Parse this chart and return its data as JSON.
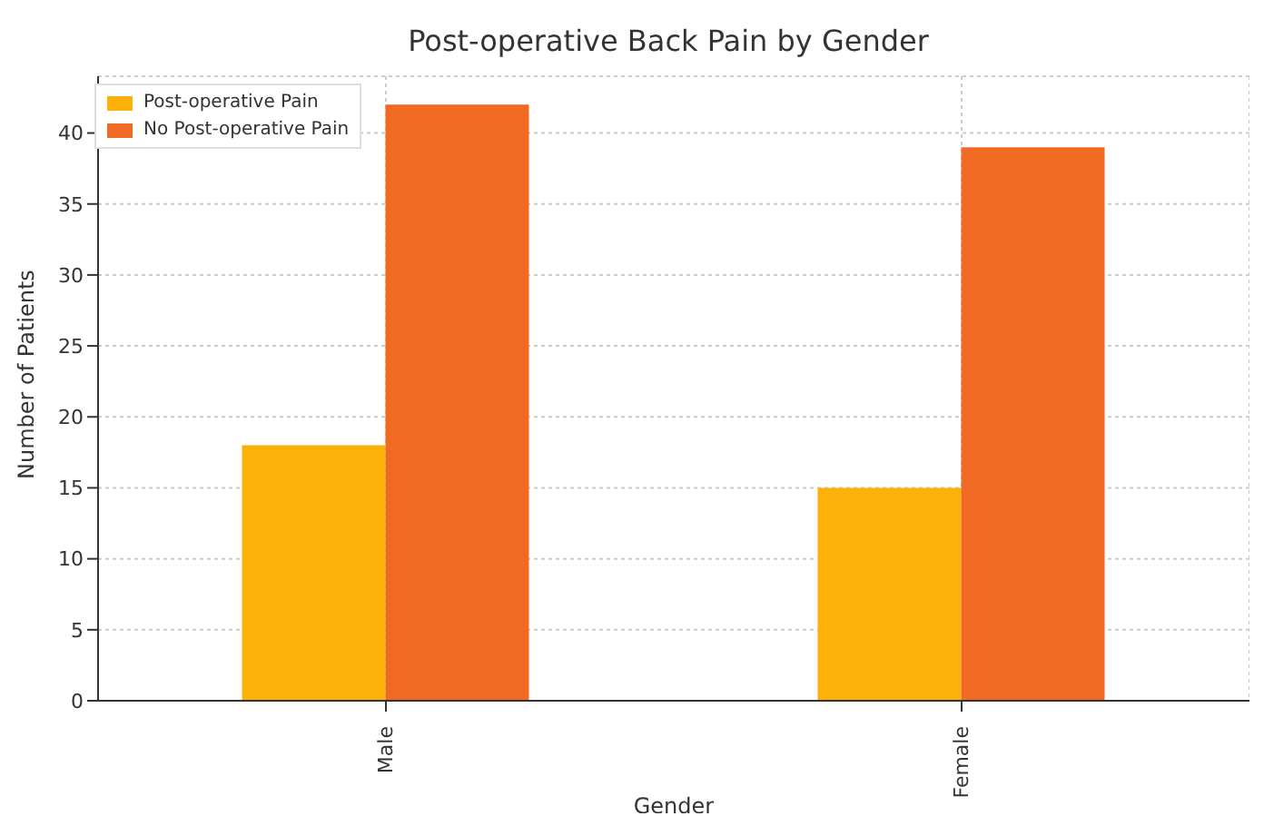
{
  "chart_data": {
    "type": "bar",
    "title": "Post-operative Back Pain by Gender",
    "xlabel": "Gender",
    "ylabel": "Number of Patients",
    "categories": [
      "Male",
      "Female"
    ],
    "series": [
      {
        "name": "Post-operative Pain",
        "color": "#fbb00a",
        "values": [
          18,
          15
        ]
      },
      {
        "name": "No Post-operative Pain",
        "color": "#f06a23",
        "values": [
          42,
          39
        ]
      }
    ],
    "ylim": [
      0,
      44
    ],
    "yticks": [
      0,
      5,
      10,
      15,
      20,
      25,
      30,
      35,
      40
    ],
    "grid": true,
    "legend": "top left"
  }
}
